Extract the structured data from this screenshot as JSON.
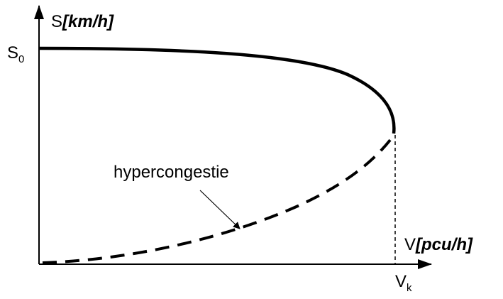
{
  "axes": {
    "y": {
      "symbol": "S",
      "unit": "[km/h]"
    },
    "x": {
      "symbol": "V",
      "unit": "[pcu/h]"
    }
  },
  "marks": {
    "s0": {
      "symbol": "S",
      "subscript": "0"
    },
    "vk": {
      "symbol": "V",
      "subscript": "k"
    }
  },
  "annotation": "hypercongestie"
}
